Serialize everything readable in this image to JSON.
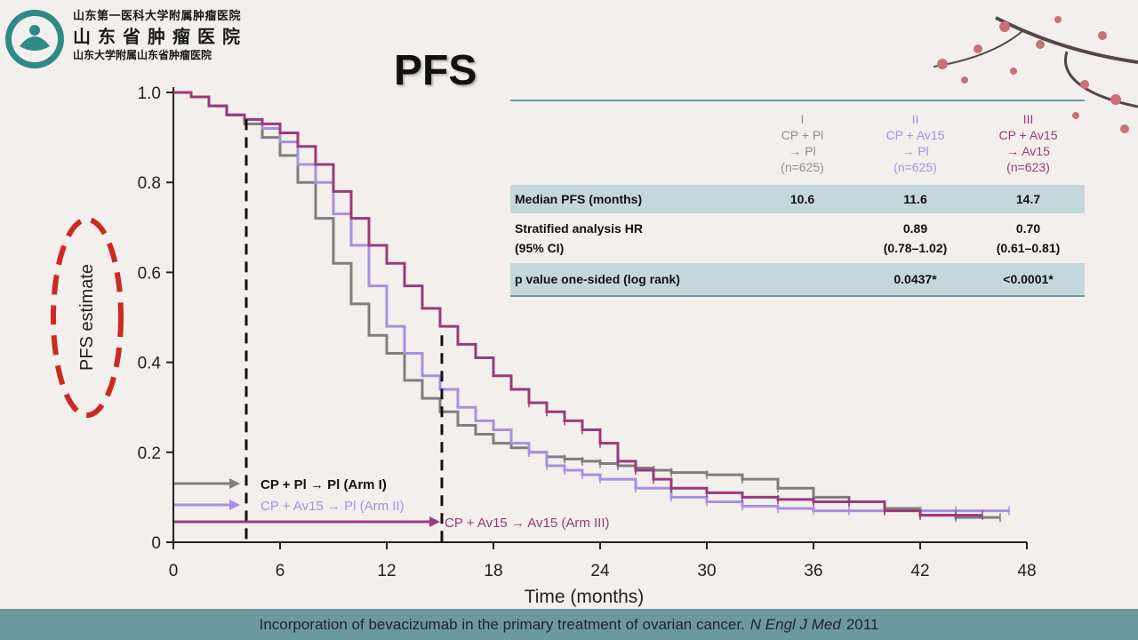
{
  "org": {
    "line1": "山东第一医科大学附属肿瘤医院",
    "line2": "山东省肿瘤医院",
    "line3": "山东大学附属山东省肿瘤医院"
  },
  "slide_title": "PFS",
  "footer": {
    "text": "Incorporation of bevacizumab in the primary treatment of ovarian cancer.",
    "journal": "N Engl J Med",
    "year": "2011"
  },
  "table": {
    "arms": [
      {
        "numeral": "I",
        "line1": "CP + Pl",
        "line2": "→ Pl",
        "n": "(n=625)",
        "color": "#8f8f8f"
      },
      {
        "numeral": "II",
        "line1": "CP + Av15",
        "line2": "→ Pl",
        "n": "(n=625)",
        "color": "#a98fe0"
      },
      {
        "numeral": "III",
        "line1": "CP + Av15",
        "line2": "→ Av15",
        "n": "(n=623)",
        "color": "#9a3a78"
      }
    ],
    "rows": [
      {
        "label": "Median PFS (months)",
        "values": [
          "10.6",
          "11.6",
          "14.7"
        ]
      },
      {
        "label_line1": "Stratified analysis HR",
        "label_line2": "(95%  CI)",
        "values": [
          "",
          "0.89",
          "0.70"
        ],
        "ci": [
          "",
          "(0.78–1.02)",
          "(0.61–0.81)"
        ]
      },
      {
        "label": "p value one-sided (log rank)",
        "values": [
          "",
          "0.0437*",
          "<0.0001*"
        ]
      }
    ]
  },
  "chart_data": {
    "type": "line",
    "title": "PFS",
    "xlabel": "Time (months)",
    "ylabel": "PFS estimate",
    "xlim": [
      0,
      48
    ],
    "ylim": [
      0,
      1.0
    ],
    "x_ticks": [
      "0",
      "6",
      "12",
      "18",
      "24",
      "30",
      "36",
      "42",
      "48"
    ],
    "y_ticks": [
      "0",
      "0.2",
      "0.4",
      "0.6",
      "0.8",
      "1.0"
    ],
    "series": [
      {
        "name": "CP + Pl → Pl (Arm I)",
        "color": "#7f7f7f",
        "x": [
          0,
          1,
          2,
          3,
          4,
          5,
          6,
          7,
          8,
          9,
          10,
          11,
          12,
          13,
          14,
          15,
          16,
          17,
          18,
          19,
          20,
          21,
          22,
          23,
          24,
          25,
          26,
          27,
          28,
          30,
          32,
          34,
          36,
          38,
          40,
          42,
          44,
          46.5
        ],
        "y": [
          1.0,
          0.99,
          0.97,
          0.95,
          0.93,
          0.9,
          0.86,
          0.8,
          0.72,
          0.62,
          0.53,
          0.46,
          0.42,
          0.36,
          0.32,
          0.29,
          0.26,
          0.24,
          0.22,
          0.21,
          0.2,
          0.19,
          0.185,
          0.18,
          0.175,
          0.17,
          0.165,
          0.16,
          0.155,
          0.15,
          0.14,
          0.12,
          0.1,
          0.09,
          0.075,
          0.06,
          0.055,
          0.055
        ]
      },
      {
        "name": "CP + Av15 → Pl (Arm II)",
        "color": "#a98fe0",
        "x": [
          0,
          1,
          2,
          3,
          4,
          5,
          6,
          7,
          8,
          9,
          10,
          11,
          12,
          13,
          14,
          15,
          16,
          17,
          18,
          19,
          20,
          21,
          22,
          23,
          24,
          26,
          28,
          30,
          32,
          34,
          36,
          38,
          40,
          42,
          44,
          47
        ],
        "y": [
          1.0,
          0.99,
          0.97,
          0.95,
          0.94,
          0.92,
          0.89,
          0.84,
          0.8,
          0.73,
          0.66,
          0.57,
          0.48,
          0.42,
          0.37,
          0.34,
          0.3,
          0.27,
          0.25,
          0.22,
          0.2,
          0.17,
          0.16,
          0.15,
          0.14,
          0.12,
          0.1,
          0.09,
          0.08,
          0.075,
          0.07,
          0.07,
          0.07,
          0.07,
          0.07,
          0.07
        ]
      },
      {
        "name": "CP + Av15 → Av15 (Arm III)",
        "color": "#9a3a78",
        "x": [
          0,
          1,
          2,
          3,
          4,
          5,
          6,
          7,
          8,
          9,
          10,
          11,
          12,
          13,
          14,
          15,
          16,
          17,
          18,
          19,
          20,
          21,
          22,
          23,
          24,
          25,
          26,
          27,
          28,
          30,
          32,
          34,
          36,
          38,
          40,
          42,
          44,
          45.5
        ],
        "y": [
          1.0,
          0.99,
          0.97,
          0.95,
          0.94,
          0.93,
          0.91,
          0.88,
          0.84,
          0.78,
          0.72,
          0.66,
          0.62,
          0.57,
          0.52,
          0.48,
          0.44,
          0.41,
          0.37,
          0.34,
          0.31,
          0.29,
          0.27,
          0.25,
          0.22,
          0.18,
          0.16,
          0.14,
          0.12,
          0.11,
          0.1,
          0.095,
          0.09,
          0.09,
          0.07,
          0.06,
          0.06,
          0.06
        ]
      }
    ],
    "reference_lines": [
      {
        "x": 4.1,
        "y_top": 0.94,
        "style": "dashed"
      },
      {
        "x": 15.1,
        "y_top": 0.46,
        "style": "dashed"
      }
    ],
    "legend_placement": "bottom-left",
    "grid": false
  }
}
